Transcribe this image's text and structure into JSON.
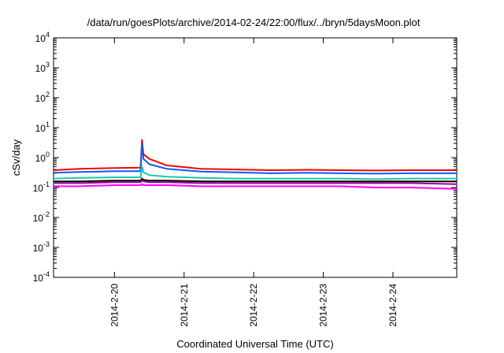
{
  "chart_data": {
    "type": "line",
    "title": "/data/run/goesPlots/archive/2014-02-24/22:00/flux/../bryn/5daysMoon.plot",
    "xlabel": "Coordinated Universal Time (UTC)",
    "ylabel": "cSv/day",
    "yscale": "log",
    "ylim": [
      0.0001,
      10000
    ],
    "y_ticks": [
      {
        "base": "10",
        "exp": "-4"
      },
      {
        "base": "10",
        "exp": "-3"
      },
      {
        "base": "10",
        "exp": "-2"
      },
      {
        "base": "10",
        "exp": "-1"
      },
      {
        "base": "10",
        "exp": "0"
      },
      {
        "base": "10",
        "exp": "1"
      },
      {
        "base": "10",
        "exp": "2"
      },
      {
        "base": "10",
        "exp": "3"
      },
      {
        "base": "10",
        "exp": "4"
      }
    ],
    "xlim": [
      "2014-02-19 03:00",
      "2014-02-24 22:00"
    ],
    "x_ticks": [
      "2014-2-20",
      "2014-2-21",
      "2014-2-22",
      "2014-2-23",
      "2014-2-24"
    ],
    "grid": false,
    "legend": "none",
    "series": [
      {
        "color": "#ff0000",
        "x": [
          "2014-02-19 03:00",
          "2014-02-19 12:00",
          "2014-02-20 00:00",
          "2014-02-20 09:00",
          "2014-02-20 09:30",
          "2014-02-20 10:00",
          "2014-02-20 12:00",
          "2014-02-20 18:00",
          "2014-02-21 06:00",
          "2014-02-21 18:00",
          "2014-02-22 06:00",
          "2014-02-22 18:00",
          "2014-02-23 06:00",
          "2014-02-23 18:00",
          "2014-02-24 06:00",
          "2014-02-24 22:00"
        ],
        "values": [
          0.38,
          0.42,
          0.45,
          0.46,
          3.9,
          1.3,
          0.9,
          0.55,
          0.42,
          0.4,
          0.38,
          0.39,
          0.38,
          0.37,
          0.38,
          0.38
        ]
      },
      {
        "color": "#0060ff",
        "x": [
          "2014-02-19 03:00",
          "2014-02-19 12:00",
          "2014-02-20 00:00",
          "2014-02-20 09:00",
          "2014-02-20 09:30",
          "2014-02-20 10:00",
          "2014-02-20 12:00",
          "2014-02-20 18:00",
          "2014-02-21 06:00",
          "2014-02-21 18:00",
          "2014-02-22 06:00",
          "2014-02-22 18:00",
          "2014-02-23 06:00",
          "2014-02-23 18:00",
          "2014-02-24 06:00",
          "2014-02-24 22:00"
        ],
        "values": [
          0.31,
          0.33,
          0.35,
          0.35,
          2.8,
          0.9,
          0.6,
          0.42,
          0.34,
          0.32,
          0.3,
          0.31,
          0.3,
          0.29,
          0.3,
          0.3
        ]
      },
      {
        "color": "#20c8a0",
        "x": [
          "2014-02-19 03:00",
          "2014-02-19 12:00",
          "2014-02-20 00:00",
          "2014-02-20 09:00",
          "2014-02-20 09:30",
          "2014-02-20 10:00",
          "2014-02-20 12:00",
          "2014-02-20 18:00",
          "2014-02-21 06:00",
          "2014-02-21 18:00",
          "2014-02-22 06:00",
          "2014-02-22 18:00",
          "2014-02-23 06:00",
          "2014-02-23 18:00",
          "2014-02-24 06:00",
          "2014-02-24 22:00"
        ],
        "values": [
          0.2,
          0.21,
          0.22,
          0.22,
          0.5,
          0.32,
          0.26,
          0.23,
          0.21,
          0.2,
          0.2,
          0.2,
          0.2,
          0.19,
          0.2,
          0.2
        ]
      },
      {
        "color": "#000000",
        "x": [
          "2014-02-19 03:00",
          "2014-02-19 12:00",
          "2014-02-20 00:00",
          "2014-02-20 09:00",
          "2014-02-20 09:30",
          "2014-02-20 10:00",
          "2014-02-20 12:00",
          "2014-02-20 18:00",
          "2014-02-21 06:00",
          "2014-02-21 18:00",
          "2014-02-22 06:00",
          "2014-02-22 18:00",
          "2014-02-23 06:00",
          "2014-02-23 18:00",
          "2014-02-24 06:00",
          "2014-02-24 22:00"
        ],
        "values": [
          0.16,
          0.16,
          0.17,
          0.17,
          0.2,
          0.18,
          0.17,
          0.17,
          0.16,
          0.16,
          0.16,
          0.16,
          0.16,
          0.16,
          0.16,
          0.16
        ]
      },
      {
        "color": "#a000a0",
        "x": [
          "2014-02-19 03:00",
          "2014-02-19 12:00",
          "2014-02-20 00:00",
          "2014-02-20 09:00",
          "2014-02-20 09:30",
          "2014-02-20 10:00",
          "2014-02-20 12:00",
          "2014-02-20 18:00",
          "2014-02-21 06:00",
          "2014-02-21 18:00",
          "2014-02-22 06:00",
          "2014-02-22 18:00",
          "2014-02-23 06:00",
          "2014-02-23 18:00",
          "2014-02-24 06:00",
          "2014-02-24 22:00"
        ],
        "values": [
          0.14,
          0.14,
          0.15,
          0.15,
          0.17,
          0.16,
          0.15,
          0.15,
          0.14,
          0.14,
          0.14,
          0.14,
          0.14,
          0.14,
          0.14,
          0.13
        ]
      },
      {
        "color": "#ff00ff",
        "x": [
          "2014-02-19 03:00",
          "2014-02-19 12:00",
          "2014-02-20 00:00",
          "2014-02-20 09:00",
          "2014-02-20 09:30",
          "2014-02-20 10:00",
          "2014-02-20 12:00",
          "2014-02-20 18:00",
          "2014-02-21 06:00",
          "2014-02-21 18:00",
          "2014-02-22 06:00",
          "2014-02-22 18:00",
          "2014-02-23 06:00",
          "2014-02-23 18:00",
          "2014-02-24 06:00",
          "2014-02-24 22:00"
        ],
        "values": [
          0.11,
          0.11,
          0.12,
          0.12,
          0.13,
          0.12,
          0.12,
          0.12,
          0.11,
          0.11,
          0.11,
          0.11,
          0.11,
          0.1,
          0.1,
          0.09
        ]
      }
    ]
  }
}
